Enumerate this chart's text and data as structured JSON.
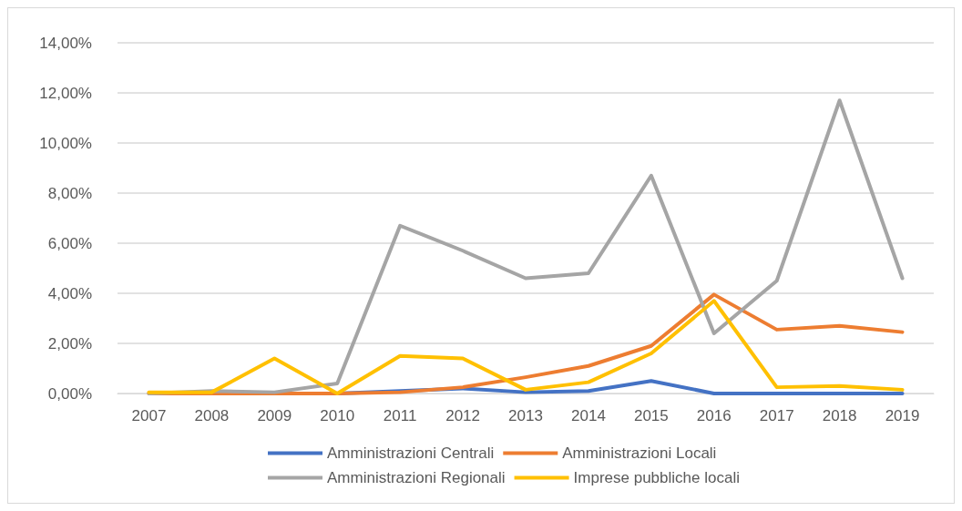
{
  "chart_data": {
    "type": "line",
    "categories": [
      "2007",
      "2008",
      "2009",
      "2010",
      "2011",
      "2012",
      "2013",
      "2014",
      "2015",
      "2016",
      "2017",
      "2018",
      "2019"
    ],
    "series": [
      {
        "name": "Amministrazioni Centrali",
        "color": "#4472c4",
        "values": [
          null,
          null,
          0,
          0,
          0.1,
          0.2,
          0.05,
          0.1,
          0.5,
          0,
          0,
          0,
          0
        ]
      },
      {
        "name": "Amministrazioni Locali",
        "color": "#ed7d31",
        "values": [
          0,
          0,
          0,
          0,
          0.05,
          0.25,
          0.65,
          1.1,
          1.9,
          3.95,
          2.55,
          2.7,
          2.45
        ]
      },
      {
        "name": "Amministrazioni Regionali",
        "color": "#a5a5a5",
        "values": [
          0,
          0.1,
          0.05,
          0.4,
          6.7,
          5.7,
          4.6,
          4.8,
          8.7,
          2.4,
          4.5,
          11.7,
          4.6
        ]
      },
      {
        "name": "Imprese pubbliche locali",
        "color": "#ffc000",
        "values": [
          0.05,
          0.05,
          1.4,
          0,
          1.5,
          1.4,
          0.15,
          0.45,
          1.6,
          3.7,
          0.25,
          0.3,
          0.15
        ]
      }
    ],
    "ylim": [
      0,
      14
    ],
    "yticks": [
      {
        "value": 0,
        "label": "0,00%"
      },
      {
        "value": 2,
        "label": "2,00%"
      },
      {
        "value": 4,
        "label": "4,00%"
      },
      {
        "value": 6,
        "label": "6,00%"
      },
      {
        "value": 8,
        "label": "8,00%"
      },
      {
        "value": 10,
        "label": "10,00%"
      },
      {
        "value": 12,
        "label": "12,00%"
      },
      {
        "value": 14,
        "label": "14,00%"
      }
    ],
    "grid": "y",
    "legend": "bottom",
    "marker": "none",
    "line_style": "solid"
  }
}
